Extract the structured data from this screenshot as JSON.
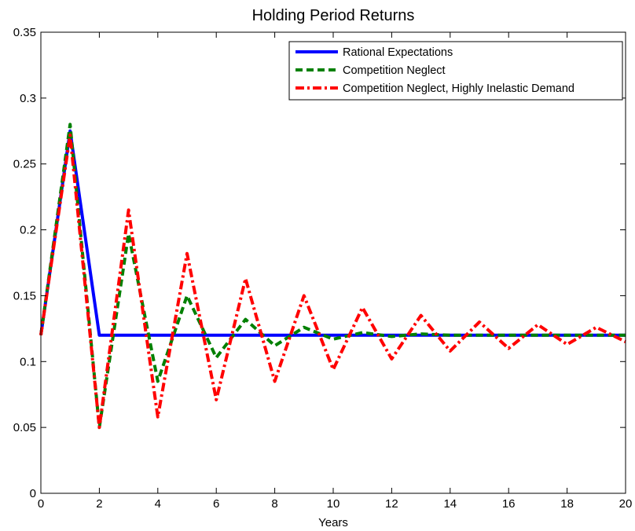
{
  "chart_data": {
    "type": "line",
    "title": "Holding Period Returns",
    "xlabel": "Years",
    "ylabel": "",
    "xlim": [
      0,
      20
    ],
    "ylim": [
      0,
      0.35
    ],
    "xticks": [
      0,
      2,
      4,
      6,
      8,
      10,
      12,
      14,
      16,
      18,
      20
    ],
    "yticks": [
      0,
      0.05,
      0.1,
      0.15,
      0.2,
      0.25,
      0.3,
      0.35
    ],
    "ytick_labels": [
      "0",
      "0.05",
      "0.1",
      "0.15",
      "0.2",
      "0.25",
      "0.3",
      "0.35"
    ],
    "grid": false,
    "legend_position": "top-right",
    "x": [
      0,
      1,
      2,
      3,
      4,
      5,
      6,
      7,
      8,
      9,
      10,
      11,
      12,
      13,
      14,
      15,
      16,
      17,
      18,
      19,
      20
    ],
    "series": [
      {
        "name": "Rational Expectations",
        "color": "#0000ff",
        "style": "solid",
        "values": [
          0.12,
          0.275,
          0.12,
          0.12,
          0.12,
          0.12,
          0.12,
          0.12,
          0.12,
          0.12,
          0.12,
          0.12,
          0.12,
          0.12,
          0.12,
          0.12,
          0.12,
          0.12,
          0.12,
          0.12,
          0.12
        ]
      },
      {
        "name": "Competition Neglect",
        "color": "#008000",
        "style": "dashed",
        "values": [
          0.12,
          0.28,
          0.05,
          0.197,
          0.085,
          0.15,
          0.103,
          0.132,
          0.112,
          0.126,
          0.117,
          0.122,
          0.119,
          0.121,
          0.12,
          0.12,
          0.12,
          0.12,
          0.12,
          0.12,
          0.12
        ]
      },
      {
        "name": "Competition Neglect, Highly Inelastic Demand",
        "color": "#ff0000",
        "style": "dashdot",
        "values": [
          0.12,
          0.272,
          0.05,
          0.215,
          0.058,
          0.182,
          0.071,
          0.163,
          0.085,
          0.15,
          0.094,
          0.141,
          0.102,
          0.135,
          0.108,
          0.13,
          0.11,
          0.128,
          0.113,
          0.126,
          0.115
        ]
      }
    ]
  }
}
